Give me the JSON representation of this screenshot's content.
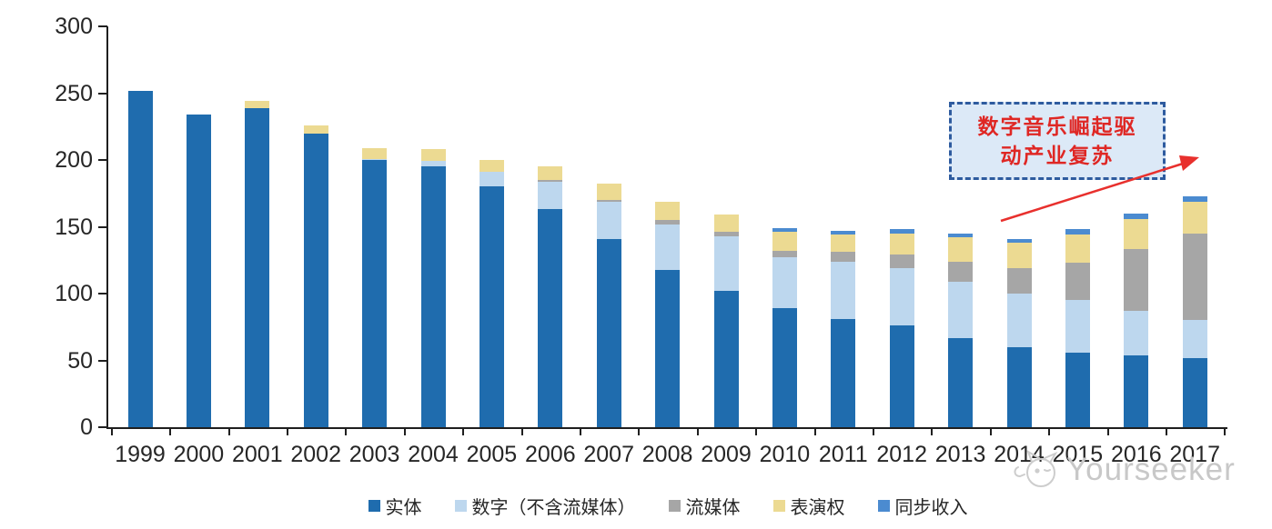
{
  "chart_data": {
    "type": "bar",
    "stacked": true,
    "title": "",
    "xlabel": "",
    "ylabel": "",
    "ylim": [
      0,
      300
    ],
    "yticks": [
      0,
      50,
      100,
      150,
      200,
      250,
      300
    ],
    "grid": false,
    "legend_position": "bottom",
    "categories": [
      "1999",
      "2000",
      "2001",
      "2002",
      "2003",
      "2004",
      "2005",
      "2006",
      "2007",
      "2008",
      "2009",
      "2010",
      "2011",
      "2012",
      "2013",
      "2014",
      "2015",
      "2016",
      "2017"
    ],
    "series": [
      {
        "name": "实体",
        "color": "#1f6cae",
        "values": [
          252,
          234,
          239,
          220,
          200,
          195,
          180,
          163,
          141,
          118,
          102,
          89,
          81,
          76,
          67,
          60,
          56,
          54,
          52
        ]
      },
      {
        "name": "数字（不含流媒体）",
        "color": "#bdd7ee",
        "values": [
          0,
          0,
          0,
          0,
          1,
          4,
          11,
          21,
          28,
          34,
          41,
          38,
          43,
          43,
          42,
          40,
          39,
          33,
          28
        ]
      },
      {
        "name": "流媒体",
        "color": "#a6a6a6",
        "values": [
          0,
          0,
          0,
          0,
          0,
          0,
          0,
          1,
          1,
          3,
          3,
          5,
          7,
          10,
          15,
          19,
          28,
          46,
          65
        ]
      },
      {
        "name": "表演权",
        "color": "#ecda92",
        "values": [
          0,
          0,
          5,
          6,
          8,
          9,
          9,
          10,
          12,
          14,
          13,
          14,
          13,
          16,
          18,
          19,
          21,
          23,
          24
        ]
      },
      {
        "name": "同步收入",
        "color": "#4b8bd0",
        "values": [
          0,
          0,
          0,
          0,
          0,
          0,
          0,
          0,
          0,
          0,
          0,
          3,
          3,
          3,
          3,
          3,
          4,
          4,
          4
        ]
      }
    ]
  },
  "annotation": {
    "line1": "数字音乐崛起驱",
    "line2": "动产业复苏",
    "text_color": "#df2724",
    "box_fill": "#dce9f7",
    "box_border": "#2e5b9f",
    "arrow_color": "#e8302d"
  },
  "watermark": {
    "text": "Yourseeker",
    "color": "#c8c8c8"
  },
  "axis": {
    "color": "#1f1f1f",
    "label_color": "#262626"
  }
}
